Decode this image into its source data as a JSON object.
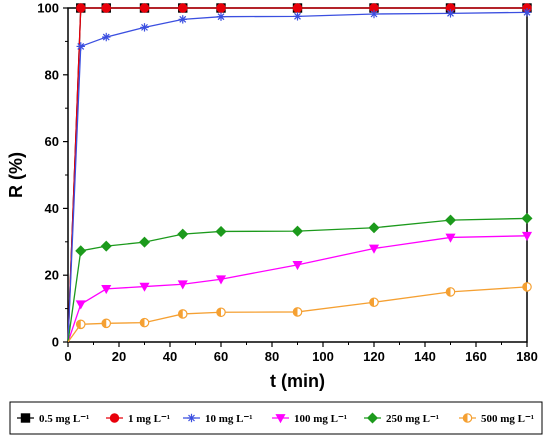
{
  "chart_data": {
    "type": "line",
    "xlabel": "t (min)",
    "ylabel": "R (%)",
    "xlim": [
      0,
      180
    ],
    "ylim": [
      0,
      100
    ],
    "xticks": [
      "0",
      "20",
      "40",
      "60",
      "80",
      "100",
      "120",
      "140",
      "160",
      "180"
    ],
    "yticks": [
      "0",
      "20",
      "40",
      "60",
      "80",
      "100"
    ],
    "grid": false,
    "legend_position": "bottom",
    "x": [
      0,
      5,
      15,
      30,
      45,
      60,
      90,
      120,
      150,
      180
    ],
    "series": [
      {
        "name": "0.5 mg L⁻¹",
        "color": "#000000",
        "marker": "square",
        "values": [
          0,
          100,
          100,
          100,
          100,
          100,
          100,
          100,
          100,
          100
        ]
      },
      {
        "name": "1 mg L⁻¹",
        "color": "#e8000b",
        "marker": "circle",
        "values": [
          0,
          100,
          100,
          100,
          100,
          100,
          100,
          100,
          100,
          100
        ]
      },
      {
        "name": "10 mg L⁻¹",
        "color": "#3b4fe0",
        "marker": "star",
        "values": [
          0,
          88.5,
          91.3,
          94.2,
          96.6,
          97.4,
          97.5,
          98.2,
          98.4,
          98.7
        ]
      },
      {
        "name": "100 mg L⁻¹",
        "color": "#ff00ff",
        "marker": "triangle-down",
        "values": [
          0,
          11.3,
          15.9,
          16.6,
          17.3,
          18.8,
          23.1,
          28.0,
          31.3,
          31.8
        ]
      },
      {
        "name": "250 mg L⁻¹",
        "color": "#1c9a1c",
        "marker": "diamond",
        "values": [
          0,
          27.3,
          28.7,
          29.9,
          32.3,
          33.1,
          33.2,
          34.2,
          36.5,
          37.0
        ]
      },
      {
        "name": "500 mg L⁻¹",
        "color": "#f5a032",
        "marker": "half-circle",
        "values": [
          0,
          5.3,
          5.6,
          5.8,
          8.4,
          8.9,
          9.0,
          11.9,
          15.0,
          16.5
        ]
      }
    ]
  }
}
